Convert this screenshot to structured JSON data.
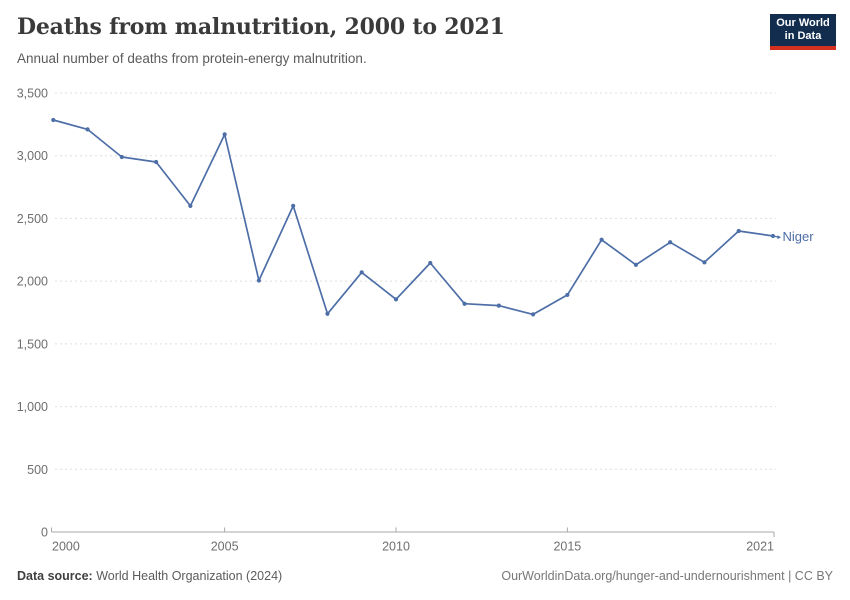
{
  "header": {
    "title": "Deaths from malnutrition, 2000 to 2021",
    "subtitle": "Annual number of deaths from protein-energy malnutrition."
  },
  "logo": {
    "line1": "Our World",
    "line2": "in Data"
  },
  "footer": {
    "source_label": "Data source:",
    "source_value": "World Health Organization (2024)",
    "link": "OurWorldinData.org/hunger-and-undernourishment | CC BY"
  },
  "colors": {
    "line": "#4d6ea7",
    "logo_bg": "#122d4e",
    "logo_accent": "#d3301f",
    "grid": "#dddddd",
    "axis": "#a8a8a8",
    "tick_text": "#6e6e6e"
  },
  "chart_data": {
    "type": "line",
    "title": "Deaths from malnutrition, 2000 to 2021",
    "subtitle": "Annual number of deaths from protein-energy malnutrition.",
    "x": [
      2000,
      2001,
      2002,
      2003,
      2004,
      2005,
      2006,
      2007,
      2008,
      2009,
      2010,
      2011,
      2012,
      2013,
      2014,
      2015,
      2016,
      2017,
      2018,
      2019,
      2020,
      2021
    ],
    "series": [
      {
        "name": "Niger",
        "color": "#4d6ea7",
        "values": [
          3285,
          3210,
          2990,
          2950,
          2600,
          3170,
          2005,
          2600,
          1740,
          2070,
          1855,
          2145,
          1820,
          1805,
          1735,
          1890,
          2330,
          2130,
          2310,
          2150,
          2400,
          2360
        ]
      }
    ],
    "xlabel": "",
    "ylabel": "",
    "ylim": [
      0,
      3500
    ],
    "yticks": [
      0,
      500,
      1000,
      1500,
      2000,
      2500,
      3000,
      3500
    ],
    "ytick_labels": [
      "0",
      "500",
      "1,000",
      "1,500",
      "2,000",
      "2,500",
      "3,000",
      "3,500"
    ],
    "xticks": [
      2000,
      2005,
      2010,
      2015,
      2021
    ],
    "xtick_labels": [
      "2000",
      "2005",
      "2010",
      "2015",
      "2021"
    ],
    "grid": "horizontal-dashed",
    "legend_position": "end-of-line-label"
  }
}
